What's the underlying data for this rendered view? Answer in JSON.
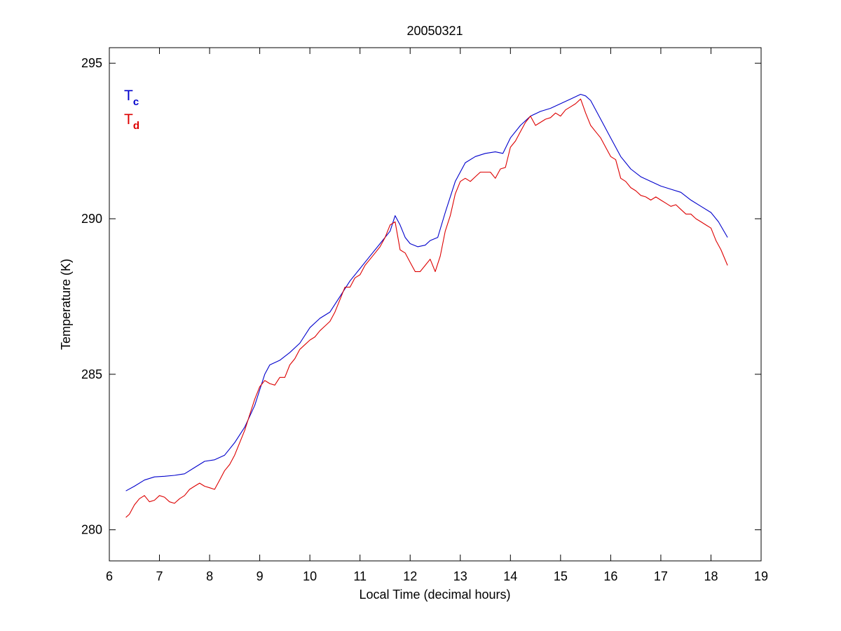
{
  "chart_data": {
    "type": "line",
    "title": "20050321",
    "xlabel": "Local Time (decimal hours)",
    "ylabel": "Temperature (K)",
    "xlim": [
      6,
      19
    ],
    "ylim": [
      279,
      295.5
    ],
    "xticks": [
      6,
      7,
      8,
      9,
      10,
      11,
      12,
      13,
      14,
      15,
      16,
      17,
      18,
      19
    ],
    "yticks": [
      280,
      285,
      290,
      295
    ],
    "grid": false,
    "legend": {
      "placement": "top-left",
      "entries": [
        {
          "main": "T",
          "sub": "c",
          "color": "#0000cc"
        },
        {
          "main": "T",
          "sub": "d",
          "color": "#dd0000"
        }
      ]
    },
    "series": [
      {
        "label_main": "T",
        "label_sub": "c",
        "color": "#0000cc",
        "x": [
          6.33,
          6.5,
          6.7,
          6.9,
          7.1,
          7.3,
          7.5,
          7.7,
          7.9,
          8.1,
          8.3,
          8.5,
          8.7,
          8.9,
          9.0,
          9.1,
          9.2,
          9.4,
          9.6,
          9.8,
          10.0,
          10.2,
          10.4,
          10.6,
          10.8,
          11.0,
          11.2,
          11.4,
          11.6,
          11.7,
          11.8,
          11.9,
          12.0,
          12.15,
          12.3,
          12.4,
          12.55,
          12.7,
          12.9,
          13.1,
          13.3,
          13.5,
          13.7,
          13.85,
          14.0,
          14.2,
          14.4,
          14.6,
          14.8,
          15.0,
          15.2,
          15.4,
          15.5,
          15.6,
          15.8,
          16.0,
          16.2,
          16.4,
          16.6,
          16.8,
          17.0,
          17.2,
          17.4,
          17.6,
          17.8,
          18.0,
          18.15,
          18.33
        ],
        "y": [
          281.25,
          281.4,
          281.6,
          281.7,
          281.72,
          281.75,
          281.8,
          282.0,
          282.2,
          282.25,
          282.4,
          282.8,
          283.3,
          284.0,
          284.5,
          285.0,
          285.3,
          285.45,
          285.7,
          286.0,
          286.5,
          286.8,
          287.0,
          287.5,
          288.0,
          288.4,
          288.8,
          289.2,
          289.6,
          290.1,
          289.8,
          289.4,
          289.2,
          289.1,
          289.15,
          289.3,
          289.4,
          290.2,
          291.2,
          291.8,
          292.0,
          292.1,
          292.15,
          292.1,
          292.6,
          293.0,
          293.3,
          293.45,
          293.55,
          293.7,
          293.85,
          294.0,
          293.95,
          293.8,
          293.2,
          292.6,
          292.0,
          291.6,
          291.35,
          291.2,
          291.05,
          290.95,
          290.85,
          290.6,
          290.4,
          290.2,
          289.9,
          289.4
        ]
      },
      {
        "label_main": "T",
        "label_sub": "d",
        "color": "#dd0000",
        "x": [
          6.33,
          6.4,
          6.5,
          6.6,
          6.7,
          6.8,
          6.9,
          7.0,
          7.1,
          7.2,
          7.3,
          7.4,
          7.5,
          7.6,
          7.7,
          7.8,
          7.9,
          8.0,
          8.1,
          8.2,
          8.3,
          8.4,
          8.5,
          8.6,
          8.7,
          8.8,
          8.9,
          9.0,
          9.1,
          9.2,
          9.3,
          9.4,
          9.5,
          9.6,
          9.7,
          9.8,
          9.9,
          10.0,
          10.1,
          10.2,
          10.3,
          10.4,
          10.5,
          10.6,
          10.7,
          10.8,
          10.9,
          11.0,
          11.1,
          11.2,
          11.3,
          11.4,
          11.5,
          11.6,
          11.7,
          11.8,
          11.9,
          12.0,
          12.1,
          12.2,
          12.3,
          12.4,
          12.5,
          12.6,
          12.7,
          12.8,
          12.9,
          13.0,
          13.1,
          13.2,
          13.3,
          13.4,
          13.5,
          13.6,
          13.7,
          13.8,
          13.9,
          14.0,
          14.1,
          14.2,
          14.3,
          14.4,
          14.5,
          14.6,
          14.7,
          14.8,
          14.9,
          15.0,
          15.1,
          15.2,
          15.3,
          15.4,
          15.5,
          15.6,
          15.7,
          15.8,
          15.9,
          16.0,
          16.1,
          16.2,
          16.3,
          16.4,
          16.5,
          16.6,
          16.7,
          16.8,
          16.9,
          17.0,
          17.1,
          17.2,
          17.3,
          17.4,
          17.5,
          17.6,
          17.7,
          17.8,
          17.9,
          18.0,
          18.1,
          18.2,
          18.33
        ],
        "y": [
          280.4,
          280.5,
          280.8,
          281.0,
          281.1,
          280.9,
          280.95,
          281.1,
          281.05,
          280.9,
          280.85,
          281.0,
          281.1,
          281.3,
          281.4,
          281.5,
          281.4,
          281.35,
          281.3,
          281.6,
          281.9,
          282.1,
          282.4,
          282.8,
          283.2,
          283.7,
          284.2,
          284.6,
          284.8,
          284.7,
          284.65,
          284.9,
          284.9,
          285.3,
          285.5,
          285.8,
          285.95,
          286.1,
          286.2,
          286.4,
          286.55,
          286.7,
          287.0,
          287.4,
          287.8,
          287.8,
          288.1,
          288.2,
          288.5,
          288.7,
          288.9,
          289.1,
          289.4,
          289.8,
          289.9,
          289.0,
          288.9,
          288.6,
          288.3,
          288.3,
          288.5,
          288.7,
          288.3,
          288.8,
          289.6,
          290.1,
          290.8,
          291.2,
          291.3,
          291.2,
          291.35,
          291.5,
          291.5,
          291.5,
          291.3,
          291.6,
          291.65,
          292.3,
          292.5,
          292.8,
          293.1,
          293.3,
          293.0,
          293.1,
          293.2,
          293.25,
          293.4,
          293.3,
          293.5,
          293.6,
          293.7,
          293.85,
          293.4,
          293.0,
          292.8,
          292.6,
          292.3,
          292.0,
          291.9,
          291.3,
          291.2,
          291.0,
          290.9,
          290.75,
          290.7,
          290.6,
          290.7,
          290.6,
          290.5,
          290.4,
          290.45,
          290.3,
          290.15,
          290.15,
          290.0,
          289.9,
          289.8,
          289.7,
          289.3,
          289.0,
          288.5
        ]
      }
    ]
  }
}
